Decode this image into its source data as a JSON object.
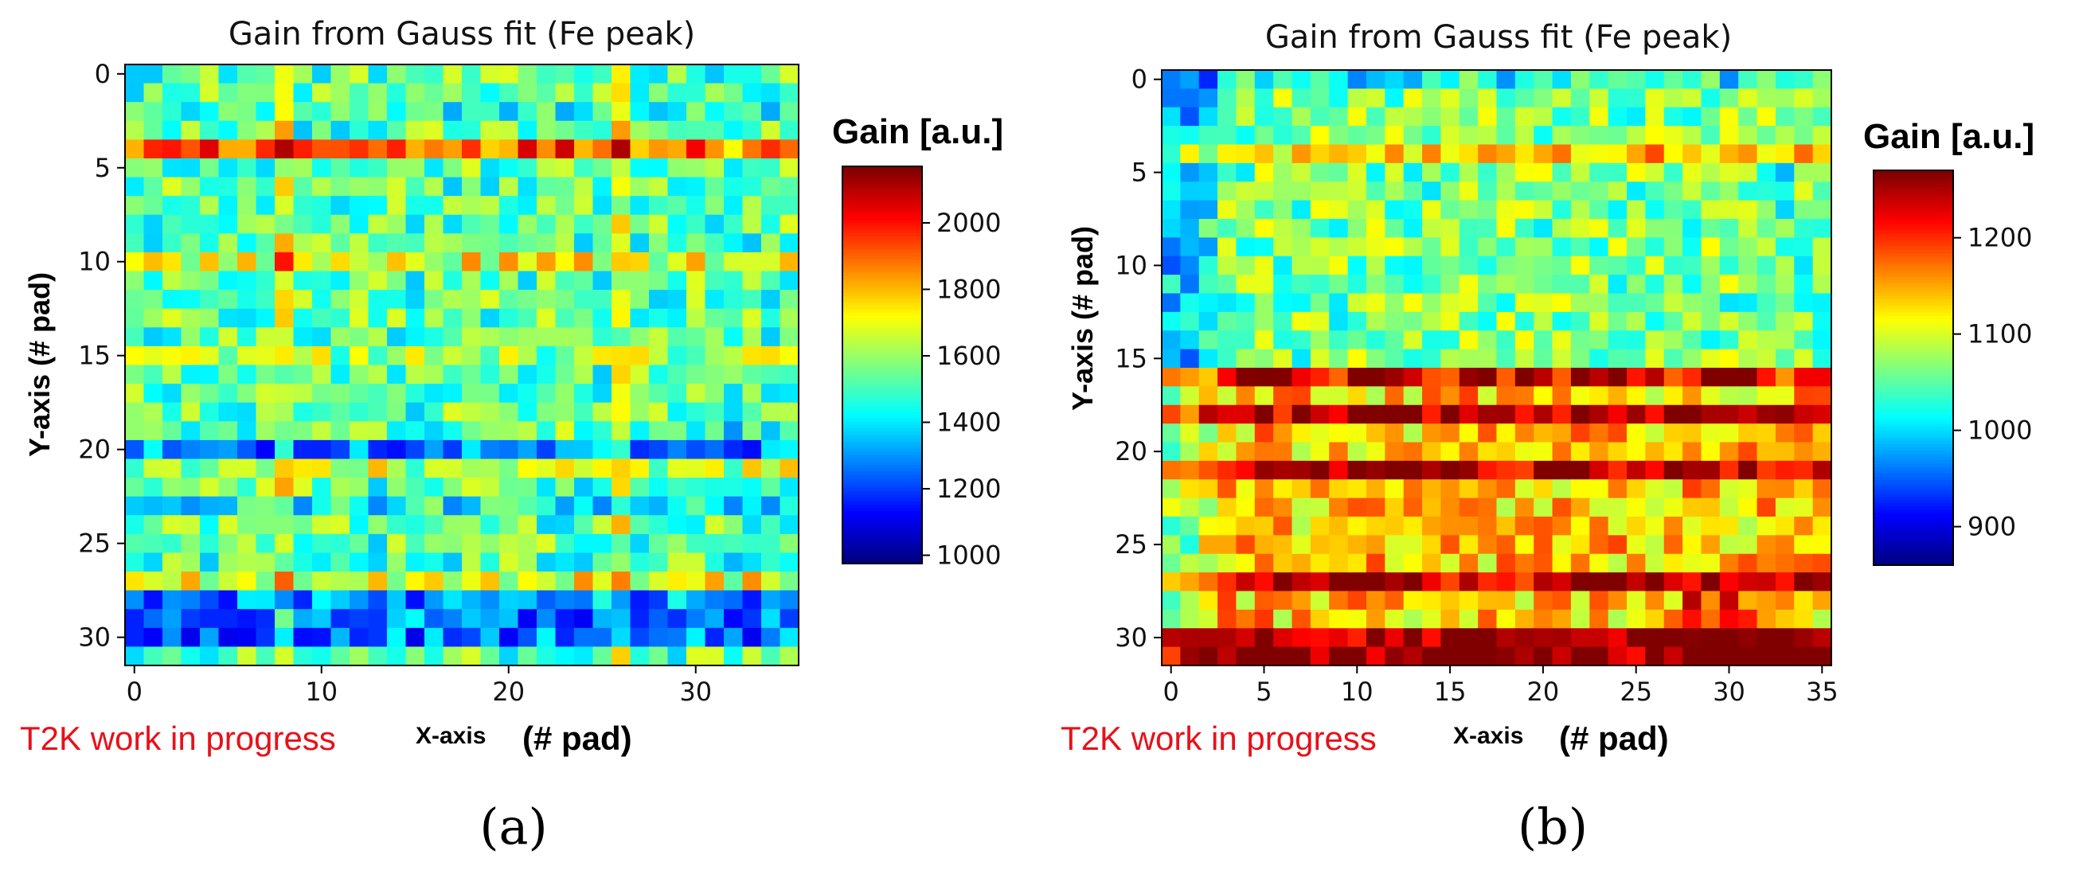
{
  "chart_data": [
    {
      "type": "heatmap",
      "title": "Gain from Gauss fit (Fe peak)",
      "xlabel_prefix": "X-axis",
      "xlabel_suffix": "(# pad)",
      "ylabel": "Y-axis (# pad)",
      "annotation": "T2K work in progress",
      "panel_label": "(a)",
      "n_cols": 36,
      "n_rows": 32,
      "x_ticks": [
        0,
        10,
        20,
        30
      ],
      "y_ticks": [
        0,
        5,
        10,
        15,
        20,
        25,
        30
      ],
      "colorbar": {
        "label": "Gain [a.u.]",
        "min": 975,
        "max": 2170,
        "ticks": [
          1000,
          1200,
          1400,
          1600,
          1800,
          2000
        ]
      },
      "value_description": "Mostly ~1400-1700; hot row 4 (~2000-2150), cold rows 20 and 28-30 (~1100-1300), column 8 and 26 anomalies",
      "baseline": 1520,
      "row_offsets": {
        "2": -60,
        "4": 420,
        "10": 180,
        "15": 80,
        "20": -250,
        "21": 120,
        "23": -80,
        "27": 180,
        "28": -220,
        "29": -260,
        "30": -260
      },
      "col_offsets": {
        "8": 150,
        "26": 160,
        "32": -60
      }
    },
    {
      "type": "heatmap",
      "title": "Gain from Gauss fit (Fe peak)",
      "xlabel_prefix": "X-axis",
      "xlabel_suffix": "(# pad)",
      "ylabel": "Y-axis (# pad)",
      "annotation": "T2K work in progress",
      "panel_label": "(b)",
      "n_cols": 36,
      "n_rows": 32,
      "x_ticks": [
        0,
        5,
        10,
        15,
        20,
        25,
        30,
        35
      ],
      "y_ticks": [
        0,
        5,
        10,
        15,
        20,
        25,
        30
      ],
      "colorbar": {
        "label": "Gain [a.u.]",
        "min": 860,
        "max": 1270,
        "ticks": [
          900,
          1000,
          1100,
          1200
        ]
      },
      "value_description": "Lower rows 0-15 ~1000-1100; rows 16-31 ~1100-1270 with hottest pads around x=29-33, y=29-31",
      "baseline": 1060,
      "row_offsets": {
        "0": -40,
        "4": 80,
        "16": 90,
        "18": 100,
        "21": 110,
        "27": 100,
        "30": 120,
        "31": 130
      },
      "col_offsets": {
        "0": -60,
        "1": -60,
        "2": -40,
        "33": -20
      }
    }
  ]
}
